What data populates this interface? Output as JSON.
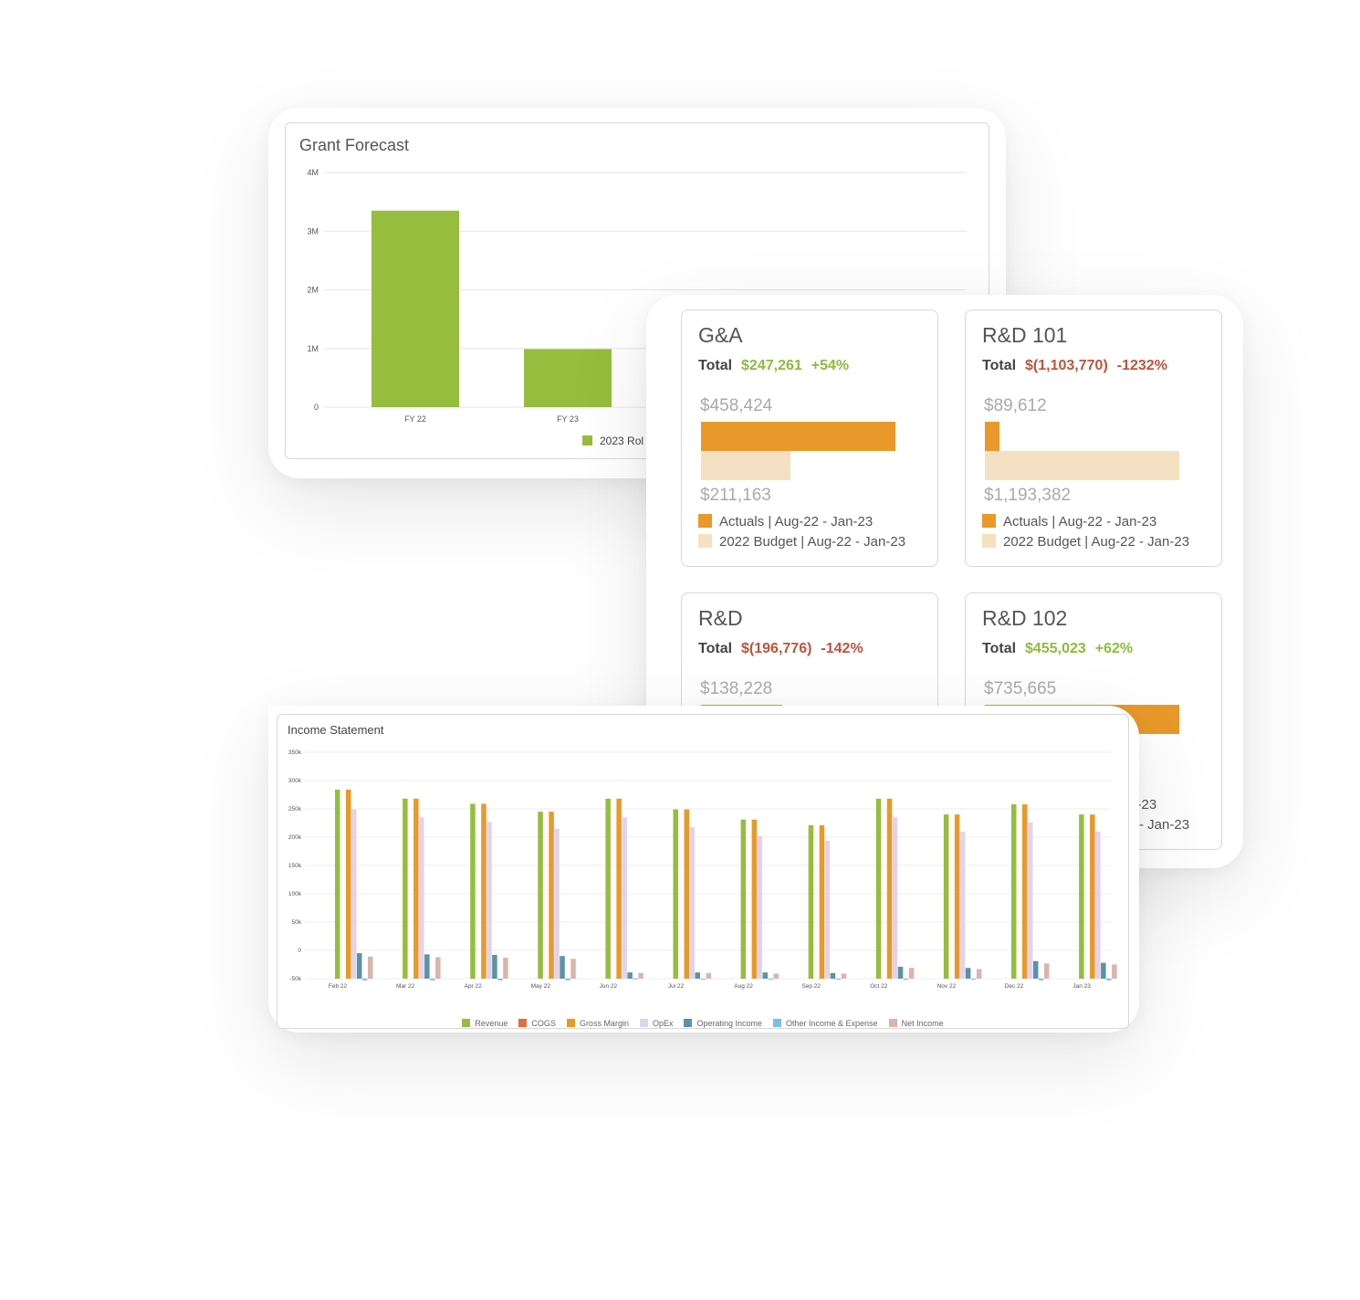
{
  "grant_forecast": {
    "title": "Grant Forecast",
    "legend_label": "2023 Rol"
  },
  "kpi_cards": [
    {
      "title": "G&A",
      "total_label": "Total",
      "total": "$247,261",
      "pct": "+54%",
      "status": "positive",
      "actual": "$458,424",
      "budget": "$211,163",
      "actual_value": 458424,
      "budget_value": 211163,
      "legend_actual": "Actuals | Aug-22 - Jan-23",
      "legend_budget": "2022 Budget | Aug-22 - Jan-23"
    },
    {
      "title": "R&D 101",
      "total_label": "Total",
      "total": "$(1,103,770)",
      "pct": "-1232%",
      "status": "negative",
      "actual": "$89,612",
      "budget": "$1,193,382",
      "actual_value": 89612,
      "budget_value": 1193382,
      "legend_actual": "Actuals | Aug-22 - Jan-23",
      "legend_budget": "2022 Budget | Aug-22 - Jan-23"
    },
    {
      "title": "R&D",
      "total_label": "Total",
      "total": "$(196,776)",
      "pct": "-142%",
      "status": "negative",
      "actual": "$138,228",
      "actual_fill": 0.42
    },
    {
      "title": "R&D 102",
      "total_label": "Total",
      "total": "$455,023",
      "pct": "+62%",
      "status": "positive",
      "actual": "$735,665",
      "actual_fill": 1.0,
      "legend_actual": "Actuals | Aug-22 - Jan-23",
      "legend_budget": "2022 Budget | Aug-22 - Jan-23"
    }
  ],
  "income_statement": {
    "title": "Income Statement"
  },
  "colors": {
    "green": "#8cbd3a",
    "red": "#c0533c",
    "orange": "#e8992a",
    "budget": "#f5e1c1"
  },
  "chart_data": [
    {
      "type": "bar",
      "title": "Grant Forecast",
      "categories": [
        "FY 22",
        "FY 23"
      ],
      "series": [
        {
          "name": "2023 Rol",
          "values": [
            3350000,
            990000
          ],
          "color": "#96bd3d"
        }
      ],
      "ylim": [
        0,
        4000000
      ],
      "yticks": [
        "0",
        "1M",
        "2M",
        "3M",
        "4M"
      ],
      "grid": true,
      "legend": "bottom"
    },
    {
      "type": "bar",
      "title": "Income Statement",
      "categories": [
        "Feb 22",
        "Mar 22",
        "Apr 22",
        "May 22",
        "Jun 22",
        "Jul 22",
        "Aug 22",
        "Sep 22",
        "Oct 22",
        "Nov 22",
        "Dec 22",
        "Jan 23"
      ],
      "ylim": [
        -50000,
        350000
      ],
      "yticks": [
        "-50k",
        "0",
        "50k",
        "100k",
        "150k",
        "200k",
        "250k",
        "300k",
        "350k"
      ],
      "grid": true,
      "legend": "bottom",
      "series": [
        {
          "name": "Revenue",
          "color": "#96bd3d",
          "values": [
            284000,
            268000,
            259000,
            245000,
            268000,
            249000,
            231000,
            221000,
            268000,
            240000,
            258000,
            240000
          ]
        },
        {
          "name": "COGS",
          "color": "#e0703a",
          "values": [
            null,
            null,
            null,
            null,
            null,
            null,
            null,
            null,
            null,
            null,
            null,
            null
          ]
        },
        {
          "name": "Gross Margin",
          "color": "#e8992a",
          "values": [
            284000,
            268000,
            259000,
            245000,
            268000,
            249000,
            231000,
            221000,
            268000,
            240000,
            258000,
            240000
          ]
        },
        {
          "name": "OpEx",
          "color": "#e2d3ec",
          "values": [
            249000,
            235000,
            227000,
            215000,
            235000,
            218000,
            202000,
            194000,
            235000,
            210000,
            226000,
            210000
          ]
        },
        {
          "name": "Operating Income",
          "color": "#5b93a6",
          "values": [
            -5000,
            -7000,
            -8000,
            -10000,
            -39000,
            -39000,
            -39000,
            -40000,
            -29000,
            -31000,
            -19000,
            -22000
          ]
        },
        {
          "name": "Other Income & Expense",
          "color": "#7dbde8",
          "values": [
            -53000,
            -53000,
            -53000,
            -53000,
            -51000,
            -51000,
            -51000,
            -51000,
            -52000,
            -52000,
            -53000,
            -53000
          ]
        },
        {
          "name": "Net Income",
          "color": "#dcb4ab",
          "values": [
            -11000,
            -12000,
            -13000,
            -15000,
            -40000,
            -40000,
            -41000,
            -41000,
            -31000,
            -33000,
            -23000,
            -25000
          ]
        }
      ]
    }
  ]
}
